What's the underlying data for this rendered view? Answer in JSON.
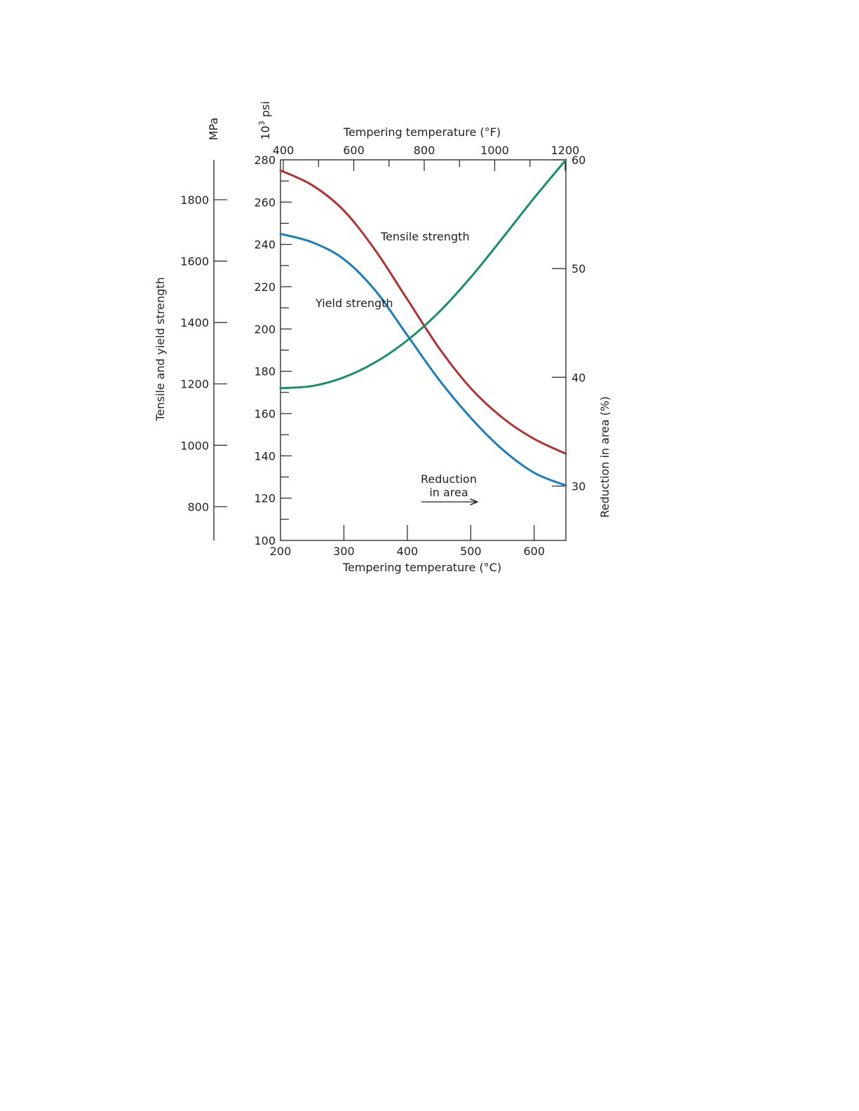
{
  "chart_data": {
    "type": "line",
    "axes": {
      "bottom": {
        "label": "Tempering temperature (°C)",
        "range": [
          200,
          650
        ],
        "ticks": [
          200,
          300,
          400,
          500,
          600
        ]
      },
      "top": {
        "label": "Tempering temperature (°F)",
        "range": [
          392,
          1202
        ],
        "ticks": [
          400,
          600,
          800,
          1000,
          1200
        ]
      },
      "left_psi": {
        "label_base": "10",
        "label_exp": "3",
        "label_unit": "psi",
        "range": [
          100,
          280
        ],
        "ticks": [
          100,
          120,
          140,
          160,
          180,
          200,
          220,
          240,
          260,
          280
        ]
      },
      "left_mpa": {
        "label": "MPa",
        "range": [
          690,
          1930
        ],
        "ticks": [
          800,
          1000,
          1200,
          1400,
          1600,
          1800
        ]
      },
      "shared_left_title": "Tensile and yield strength",
      "right": {
        "label": "Reduction in area (%)",
        "range": [
          25,
          60
        ],
        "ticks": [
          30,
          40,
          50,
          60
        ]
      }
    },
    "series": [
      {
        "name": "Tensile strength",
        "axis": "left_psi",
        "color": "#b63032",
        "x": [
          200,
          250,
          300,
          350,
          400,
          450,
          500,
          550,
          600,
          650
        ],
        "y": [
          275,
          268,
          256,
          237,
          214,
          191,
          172,
          158,
          148,
          141
        ]
      },
      {
        "name": "Yield strength",
        "axis": "left_psi",
        "color": "#1a7dbf",
        "x": [
          200,
          250,
          300,
          350,
          400,
          450,
          500,
          550,
          600,
          650
        ],
        "y": [
          245,
          241,
          233,
          218,
          197,
          176,
          158,
          143,
          132,
          126
        ]
      },
      {
        "name": "Reduction in area",
        "axis": "right",
        "color": "#16906a",
        "x": [
          200,
          250,
          300,
          350,
          400,
          450,
          500,
          550,
          600,
          650
        ],
        "y": [
          39,
          39.2,
          40,
          41.4,
          43.4,
          46,
          49.2,
          52.8,
          56.5,
          60
        ]
      }
    ],
    "annotations": {
      "tensile": "Tensile strength",
      "yield": "Yield strength",
      "reduction_line1": "Reduction",
      "reduction_line2": "in area"
    }
  }
}
